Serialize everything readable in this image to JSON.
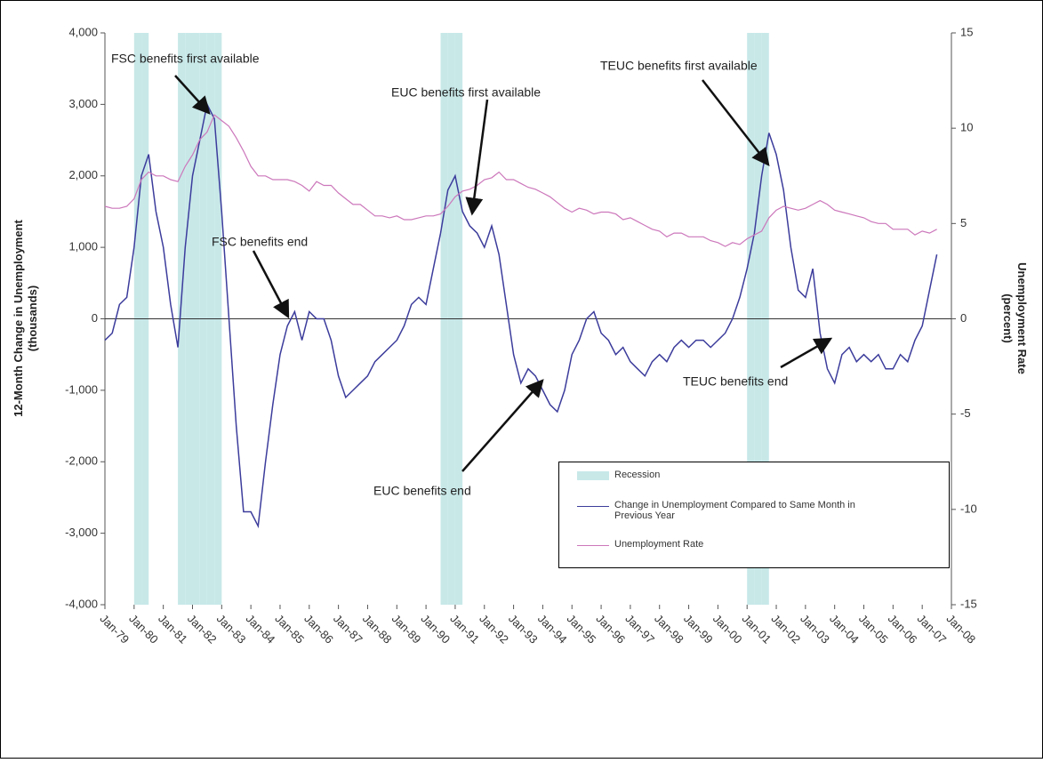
{
  "chart_data": {
    "type": "line",
    "y_label": [
      "12-Month Change in Unemployment",
      "(thousands)"
    ],
    "y2_label": [
      "Unemployment Rate",
      "(percent)"
    ],
    "categories": [
      "Jan-79",
      null,
      null,
      null,
      "Jan-80",
      null,
      null,
      null,
      "Jan-81",
      null,
      null,
      null,
      "Jan-82",
      null,
      null,
      null,
      "Jan-83",
      null,
      null,
      null,
      "Jan-84",
      null,
      null,
      null,
      "Jan-85",
      null,
      null,
      null,
      "Jan-86",
      null,
      null,
      null,
      "Jan-87",
      null,
      null,
      null,
      "Jan-88",
      null,
      null,
      null,
      "Jan-89",
      null,
      null,
      null,
      "Jan-90",
      null,
      null,
      null,
      "Jan-91",
      null,
      null,
      null,
      "Jan-92",
      null,
      null,
      null,
      "Jan-93",
      null,
      null,
      null,
      "Jan-94",
      null,
      null,
      null,
      "Jan-95",
      null,
      null,
      null,
      "Jan-96",
      null,
      null,
      null,
      "Jan-97",
      null,
      null,
      null,
      "Jan-98",
      null,
      null,
      null,
      "Jan-99",
      null,
      null,
      null,
      "Jan-00",
      null,
      null,
      null,
      "Jan-01",
      null,
      null,
      null,
      "Jan-02",
      null,
      null,
      null,
      "Jan-03",
      null,
      null,
      null,
      "Jan-04",
      null,
      null,
      null,
      "Jan-05",
      null,
      null,
      null,
      "Jan-06",
      null,
      null,
      null,
      "Jan-07",
      null,
      null,
      null,
      "Jan-08"
    ],
    "series": [
      {
        "name": "Recession",
        "kind": "band",
        "color": "#c8e8e8",
        "values": [
          null,
          null,
          null,
          null,
          1,
          1,
          null,
          null,
          null,
          null,
          1,
          1,
          1,
          1,
          1,
          1,
          null,
          null,
          null,
          null,
          null,
          null,
          null,
          null,
          null,
          null,
          null,
          null,
          null,
          null,
          null,
          null,
          null,
          null,
          null,
          null,
          null,
          null,
          null,
          null,
          null,
          null,
          null,
          null,
          null,
          null,
          1,
          1,
          1,
          null,
          null,
          null,
          null,
          null,
          null,
          null,
          null,
          null,
          null,
          null,
          null,
          null,
          null,
          null,
          null,
          null,
          null,
          null,
          null,
          null,
          null,
          null,
          null,
          null,
          null,
          null,
          null,
          null,
          null,
          null,
          null,
          null,
          null,
          null,
          null,
          null,
          null,
          null,
          1,
          1,
          1,
          null,
          null,
          null,
          null,
          null,
          null,
          null,
          null,
          null,
          null,
          null,
          null,
          null,
          null,
          null,
          null,
          null,
          null,
          null,
          null,
          null,
          null,
          null,
          null,
          null,
          null
        ]
      },
      {
        "name": "Change in Unemployment Compared to Same Month in Previous Year",
        "color": "#3c3c9c",
        "values": [
          -300,
          -200,
          200,
          300,
          1000,
          2000,
          2300,
          1500,
          1000,
          200,
          -400,
          1000,
          2000,
          2500,
          3000,
          2800,
          1500,
          0,
          -1500,
          -2700,
          -2700,
          -2900,
          -2000,
          -1200,
          -500,
          -100,
          100,
          -300,
          100,
          0,
          0,
          -300,
          -800,
          -1100,
          -1000,
          -900,
          -800,
          -600,
          -500,
          -400,
          -300,
          -100,
          200,
          300,
          200,
          700,
          1200,
          1800,
          2000,
          1500,
          1300,
          1200,
          1000,
          1300,
          900,
          200,
          -500,
          -900,
          -700,
          -800,
          -1000,
          -1200,
          -1300,
          -1000,
          -500,
          -300,
          0,
          100,
          -200,
          -300,
          -500,
          -400,
          -600,
          -700,
          -800,
          -600,
          -500,
          -600,
          -400,
          -300,
          -400,
          -300,
          -300,
          -400,
          -300,
          -200,
          0,
          300,
          700,
          1200,
          2000,
          2600,
          2300,
          1800,
          1000,
          400,
          300,
          700,
          -200,
          -700,
          -900,
          -500,
          -400,
          -600,
          -500,
          -600,
          -500,
          -700,
          -700,
          -500,
          -600,
          -300,
          -100,
          400,
          900,
          null,
          null
        ]
      },
      {
        "name": "Unemployment Rate",
        "color": "#cc77bb",
        "axis": "y2",
        "values": [
          5.9,
          5.8,
          5.8,
          5.9,
          6.3,
          7.3,
          7.7,
          7.5,
          7.5,
          7.3,
          7.2,
          8.0,
          8.6,
          9.4,
          9.8,
          10.7,
          10.4,
          10.1,
          9.5,
          8.8,
          8.0,
          7.5,
          7.5,
          7.3,
          7.3,
          7.3,
          7.2,
          7.0,
          6.7,
          7.2,
          7.0,
          7.0,
          6.6,
          6.3,
          6.0,
          6.0,
          5.7,
          5.4,
          5.4,
          5.3,
          5.4,
          5.2,
          5.2,
          5.3,
          5.4,
          5.4,
          5.5,
          5.9,
          6.4,
          6.7,
          6.8,
          7.0,
          7.3,
          7.4,
          7.7,
          7.3,
          7.3,
          7.1,
          6.9,
          6.8,
          6.6,
          6.4,
          6.1,
          5.8,
          5.6,
          5.8,
          5.7,
          5.5,
          5.6,
          5.6,
          5.5,
          5.2,
          5.3,
          5.1,
          4.9,
          4.7,
          4.6,
          4.3,
          4.5,
          4.5,
          4.3,
          4.3,
          4.3,
          4.1,
          4.0,
          3.8,
          4.0,
          3.9,
          4.2,
          4.4,
          4.6,
          5.3,
          5.7,
          5.9,
          5.8,
          5.7,
          5.8,
          6.0,
          6.2,
          6.0,
          5.7,
          5.6,
          5.5,
          5.4,
          5.3,
          5.1,
          5.0,
          5.0,
          4.7,
          4.7,
          4.7,
          4.4,
          4.6,
          4.5,
          4.7,
          null,
          null
        ]
      }
    ],
    "ylim": [
      -4000,
      4000
    ],
    "yticks": [
      {
        "value": -4000,
        "label": "-4,000"
      },
      {
        "value": -3000,
        "label": "-3,000"
      },
      {
        "value": -2000,
        "label": "-2,000"
      },
      {
        "value": -1000,
        "label": "-1,000"
      },
      0,
      {
        "value": 1000,
        "label": "1,000"
      },
      {
        "value": 2000,
        "label": "2,000"
      },
      {
        "value": 3000,
        "label": "3,000"
      },
      {
        "value": 4000,
        "label": "4,000"
      }
    ],
    "y2lim": [
      -15,
      15
    ],
    "y2ticks": [
      -15,
      -10,
      -5,
      0,
      5,
      10,
      15
    ],
    "annotations": [
      "FSC benefits first available",
      "EUC benefits first available",
      "TEUC benefits first available",
      "FSC benefits end",
      "EUC benefits end",
      "TEUC benefits end"
    ]
  }
}
